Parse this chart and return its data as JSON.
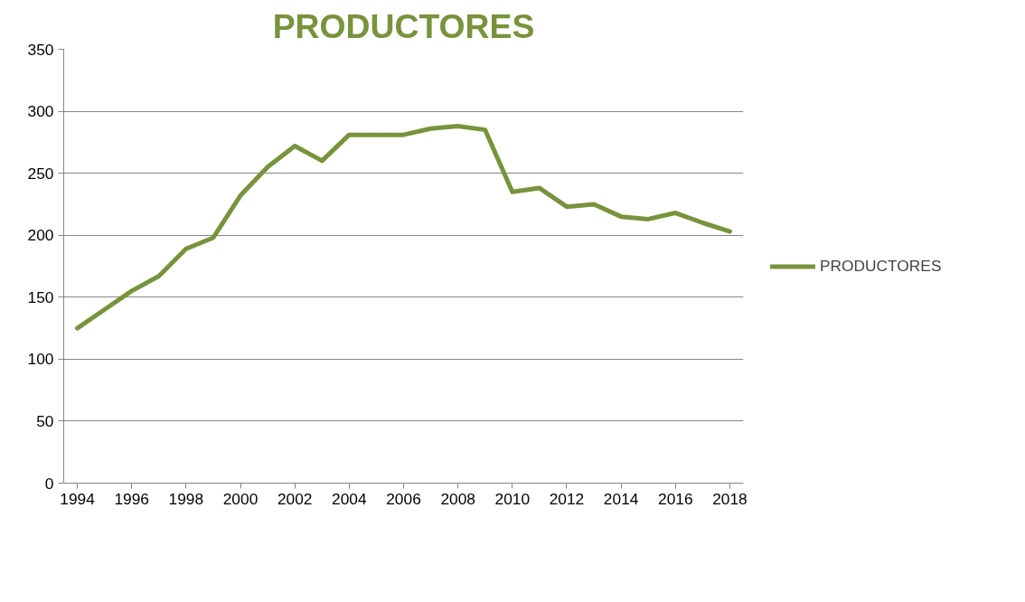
{
  "chart_data": {
    "type": "line",
    "title": "PRODUCTORES",
    "x": [
      1994,
      1995,
      1996,
      1997,
      1998,
      1999,
      2000,
      2001,
      2002,
      2003,
      2004,
      2005,
      2006,
      2007,
      2008,
      2009,
      2010,
      2011,
      2012,
      2013,
      2014,
      2015,
      2016,
      2017,
      2018
    ],
    "series": [
      {
        "name": "PRODUCTORES",
        "color": "#77933c",
        "values": [
          125,
          140,
          155,
          167,
          189,
          198,
          232,
          255,
          272,
          260,
          281,
          281,
          281,
          286,
          288,
          285,
          235,
          238,
          223,
          225,
          215,
          213,
          218,
          210,
          203
        ]
      }
    ],
    "xlim": [
      1993.5,
      2018.5
    ],
    "xticks": [
      1994,
      1996,
      1998,
      2000,
      2002,
      2004,
      2006,
      2008,
      2010,
      2012,
      2014,
      2016,
      2018
    ],
    "ylim": [
      0,
      350
    ],
    "yticks": [
      0,
      50,
      100,
      150,
      200,
      250,
      300,
      350
    ],
    "grid": "y",
    "legend": "right",
    "marker": "none",
    "line_style": "solid"
  }
}
